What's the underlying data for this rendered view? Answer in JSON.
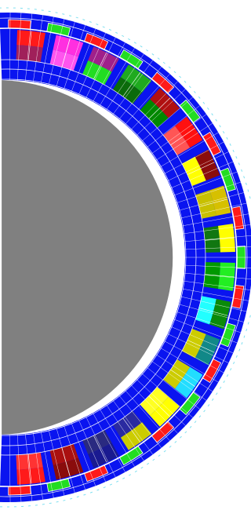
{
  "diagram": {
    "kind": "machine cross-section (finite-element mesh)",
    "colors": {
      "background": "#ffffff",
      "yoke": "#0a14f0",
      "rotor": "#808080",
      "mesh_line": "#ffffff",
      "outer_ring_line": "#7fe0f0"
    },
    "slots": [
      {
        "color": "#ff1a1a",
        "accent": "#a0205a"
      },
      {
        "color": "#ff2fe0",
        "accent": "#ff55ee"
      },
      {
        "color": "#a0208a",
        "accent": "#22dd22"
      },
      {
        "color": "#1faa1f",
        "accent": "#0b6b0b"
      },
      {
        "color": "#b01010",
        "accent": "#008800"
      },
      {
        "color": "#ff1010",
        "accent": "#ff5555"
      },
      {
        "color": "#8a0c0c",
        "accent": "#ffff00"
      },
      {
        "color": "#d6c000",
        "accent": "#c8c000"
      },
      {
        "color": "#ffff00",
        "accent": "#117711"
      },
      {
        "color": "#22ee22",
        "accent": "#009900"
      },
      {
        "color": "#0a8a0a",
        "accent": "#22ffff"
      },
      {
        "color": "#118888",
        "accent": "#cccc00"
      },
      {
        "color": "#22ddff",
        "accent": "#cccc00"
      },
      {
        "color": "#ffff00",
        "accent": "#ffff22"
      },
      {
        "color": "#cccc00",
        "accent": "#2a2aa0"
      },
      {
        "color": "#1a1a90",
        "accent": "#2a2a80"
      },
      {
        "color": "#8a0c0c",
        "accent": "#aa1010"
      },
      {
        "color": "#ff1a1a",
        "accent": "#ff3333"
      }
    ],
    "tooth_tips": [
      {
        "color": "#ff1a1a"
      },
      {
        "color": "#22dd22"
      },
      {
        "color": "#ff1a1a"
      },
      {
        "color": "#22dd22"
      },
      {
        "color": "#ff1a1a"
      },
      {
        "color": "#22dd22"
      },
      {
        "color": "#ff1a1a"
      },
      {
        "color": "#22dd22"
      },
      {
        "color": "#ff1a1a"
      },
      {
        "color": "#22dd22"
      },
      {
        "color": "#ff1a1a"
      },
      {
        "color": "#22dd22"
      },
      {
        "color": "#ff1a1a"
      },
      {
        "color": "#22dd22"
      },
      {
        "color": "#ff1a1a"
      },
      {
        "color": "#22dd22"
      },
      {
        "color": "#ff1a1a"
      },
      {
        "color": "#22dd22"
      },
      {
        "color": "#ff1a1a"
      }
    ]
  }
}
